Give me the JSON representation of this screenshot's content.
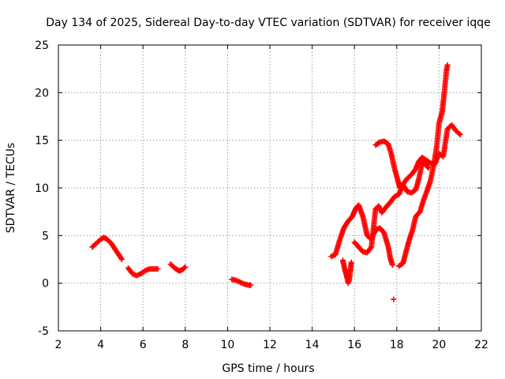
{
  "chart_data": {
    "type": "scatter",
    "title": "Day 134 of 2025, Sidereal Day-to-day VTEC variation (SDTVAR) for receiver iqqe",
    "xlabel": "GPS time / hours",
    "ylabel": "SDTVAR / TECUs",
    "xlim": [
      2,
      22
    ],
    "ylim": [
      -5,
      25
    ],
    "xticks": [
      "2",
      "4",
      "6",
      "8",
      "10",
      "12",
      "14",
      "16",
      "18",
      "20",
      "22"
    ],
    "yticks": [
      "-5",
      "0",
      "5",
      "10",
      "15",
      "20",
      "25"
    ],
    "grid": true,
    "marker": "plus",
    "color": "#ff0000",
    "series": [
      {
        "name": "seg-a",
        "points": [
          [
            3.6,
            3.8
          ],
          [
            3.8,
            4.2
          ],
          [
            4.0,
            4.6
          ],
          [
            4.15,
            4.8
          ],
          [
            4.3,
            4.6
          ],
          [
            4.5,
            4.2
          ],
          [
            4.7,
            3.5
          ],
          [
            4.85,
            3.0
          ],
          [
            5.0,
            2.5
          ]
        ]
      },
      {
        "name": "seg-b",
        "points": [
          [
            5.3,
            1.6
          ],
          [
            5.5,
            1.0
          ],
          [
            5.7,
            0.8
          ],
          [
            5.9,
            1.0
          ],
          [
            6.1,
            1.3
          ],
          [
            6.3,
            1.5
          ],
          [
            6.5,
            1.5
          ],
          [
            6.7,
            1.5
          ]
        ]
      },
      {
        "name": "seg-c",
        "points": [
          [
            7.3,
            2.0
          ],
          [
            7.5,
            1.6
          ],
          [
            7.7,
            1.3
          ],
          [
            7.85,
            1.4
          ],
          [
            8.0,
            1.7
          ]
        ]
      },
      {
        "name": "seg-d",
        "points": [
          [
            10.2,
            0.4
          ],
          [
            10.4,
            0.3
          ],
          [
            10.6,
            0.1
          ],
          [
            10.8,
            -0.1
          ],
          [
            11.0,
            -0.2
          ],
          [
            11.1,
            -0.2
          ]
        ]
      },
      {
        "name": "seg-e",
        "points": [
          [
            14.9,
            2.8
          ],
          [
            15.1,
            3.0
          ],
          [
            15.3,
            4.5
          ],
          [
            15.5,
            5.8
          ],
          [
            15.7,
            6.5
          ],
          [
            15.9,
            7.0
          ],
          [
            16.05,
            7.8
          ],
          [
            16.2,
            8.2
          ],
          [
            16.4,
            7.0
          ],
          [
            16.6,
            5.0
          ],
          [
            16.8,
            4.6
          ],
          [
            17.0,
            5.6
          ],
          [
            17.2,
            5.8
          ],
          [
            17.4,
            5.3
          ],
          [
            17.6,
            3.8
          ],
          [
            17.7,
            2.6
          ],
          [
            17.8,
            1.9
          ]
        ]
      },
      {
        "name": "seg-f",
        "points": [
          [
            15.45,
            2.4
          ],
          [
            15.55,
            1.4
          ],
          [
            15.65,
            0.6
          ],
          [
            15.7,
            0.0
          ],
          [
            15.75,
            0.3
          ],
          [
            15.8,
            1.2
          ],
          [
            15.85,
            2.2
          ]
        ]
      },
      {
        "name": "seg-g",
        "points": [
          [
            16.0,
            4.3
          ],
          [
            16.2,
            3.8
          ],
          [
            16.4,
            3.3
          ],
          [
            16.6,
            3.2
          ],
          [
            16.8,
            3.8
          ],
          [
            17.0,
            7.8
          ],
          [
            17.15,
            8.1
          ],
          [
            17.3,
            7.4
          ],
          [
            17.5,
            8.0
          ],
          [
            17.7,
            8.5
          ],
          [
            17.9,
            9.1
          ],
          [
            18.1,
            9.3
          ],
          [
            18.3,
            10.4
          ],
          [
            18.5,
            11.0
          ],
          [
            18.7,
            11.4
          ],
          [
            18.9,
            12.0
          ],
          [
            19.05,
            12.8
          ],
          [
            19.2,
            13.2
          ],
          [
            19.4,
            12.9
          ],
          [
            19.6,
            12.6
          ],
          [
            19.8,
            12.5
          ],
          [
            20.0,
            13.6
          ],
          [
            20.2,
            13.3
          ],
          [
            20.4,
            16.2
          ],
          [
            20.6,
            16.6
          ],
          [
            20.8,
            16.0
          ],
          [
            21.0,
            15.6
          ]
        ]
      },
      {
        "name": "seg-h",
        "points": [
          [
            17.0,
            14.5
          ],
          [
            17.2,
            14.8
          ],
          [
            17.4,
            14.9
          ],
          [
            17.6,
            14.6
          ],
          [
            17.75,
            13.5
          ],
          [
            17.9,
            12.0
          ],
          [
            18.05,
            10.8
          ],
          [
            18.15,
            10.0
          ],
          [
            18.3,
            10.3
          ],
          [
            18.5,
            9.6
          ],
          [
            18.7,
            9.5
          ],
          [
            18.9,
            9.8
          ],
          [
            19.05,
            11.0
          ],
          [
            19.2,
            12.6
          ],
          [
            19.35,
            12.5
          ],
          [
            19.5,
            12.1
          ]
        ]
      },
      {
        "name": "seg-i",
        "points": [
          [
            18.1,
            1.8
          ],
          [
            18.3,
            2.1
          ],
          [
            18.45,
            3.4
          ],
          [
            18.6,
            4.6
          ],
          [
            18.75,
            5.6
          ],
          [
            18.9,
            7.0
          ],
          [
            19.1,
            7.5
          ],
          [
            19.25,
            8.6
          ],
          [
            19.45,
            9.8
          ],
          [
            19.6,
            10.8
          ],
          [
            19.75,
            12.4
          ],
          [
            19.9,
            14.5
          ],
          [
            20.0,
            16.8
          ],
          [
            20.15,
            18.0
          ],
          [
            20.25,
            20.0
          ],
          [
            20.35,
            22.3
          ],
          [
            20.4,
            22.9
          ]
        ]
      },
      {
        "name": "seg-j",
        "points": [
          [
            17.85,
            -1.7
          ]
        ]
      }
    ]
  }
}
